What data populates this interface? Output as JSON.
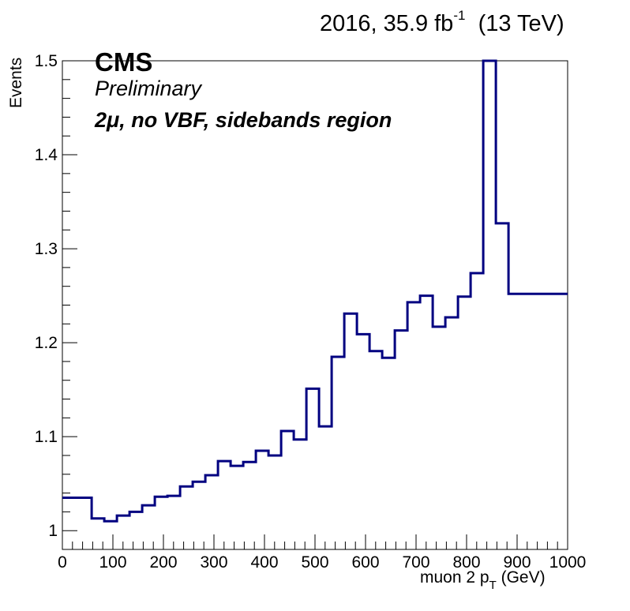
{
  "header": {
    "lumi_prefix": "2016, 35.9 fb",
    "lumi_exp": "-1",
    "lumi_suffix": "(13 TeV)"
  },
  "labels": {
    "cms": "CMS",
    "preliminary": "Preliminary",
    "region": "2μ, no VBF, sidebands region"
  },
  "chart_data": {
    "type": "histogram",
    "xlabel_main": "muon 2 p",
    "xlabel_sub": "T",
    "xlabel_unit": "(GeV)",
    "ylabel": "Events",
    "xlim": [
      0,
      1000
    ],
    "ylim": [
      0.98,
      1.5
    ],
    "x_ticks": [
      0,
      100,
      200,
      300,
      400,
      500,
      600,
      700,
      800,
      900,
      1000
    ],
    "x_tick_labels": [
      "0",
      "100",
      "200",
      "300",
      "400",
      "500",
      "600",
      "700",
      "800",
      "900",
      "1000"
    ],
    "y_ticks": [
      1.0,
      1.1,
      1.2,
      1.3,
      1.4,
      1.5
    ],
    "y_tick_labels": [
      "1",
      "1.1",
      "1.2",
      "1.3",
      "1.4",
      "1.5"
    ],
    "line_color": "#000080",
    "bin_edges": [
      0,
      58,
      83,
      108,
      133,
      158,
      183,
      208,
      233,
      258,
      283,
      308,
      333,
      358,
      383,
      408,
      433,
      458,
      483,
      508,
      533,
      558,
      583,
      608,
      633,
      658,
      683,
      708,
      733,
      758,
      783,
      808,
      833,
      858,
      883,
      908,
      933,
      958,
      983,
      1000
    ],
    "values": [
      1.035,
      1.013,
      1.01,
      1.016,
      1.02,
      1.027,
      1.036,
      1.037,
      1.047,
      1.052,
      1.059,
      1.074,
      1.069,
      1.073,
      1.085,
      1.08,
      1.106,
      1.097,
      1.151,
      1.111,
      1.185,
      1.231,
      1.209,
      1.191,
      1.184,
      1.213,
      1.243,
      1.25,
      1.217,
      1.227,
      1.249,
      1.274,
      1.5,
      1.327,
      1.252,
      1.252,
      1.252,
      1.252,
      1.252
    ]
  }
}
